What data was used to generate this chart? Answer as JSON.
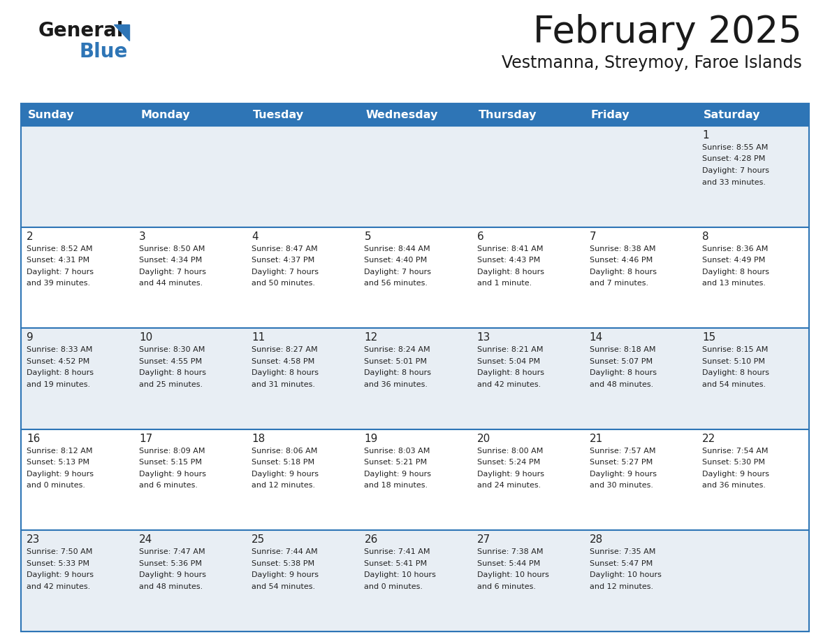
{
  "title": "February 2025",
  "subtitle": "Vestmanna, Streymoy, Faroe Islands",
  "header_bg_color": "#2e75b6",
  "header_text_color": "#ffffff",
  "cell_bg_row0": "#e8eef4",
  "cell_bg_row1": "#ffffff",
  "cell_bg_row2": "#e8eef4",
  "cell_bg_row3": "#ffffff",
  "cell_bg_row4": "#e8eef4",
  "cell_border_color": "#2e75b6",
  "text_color": "#222222",
  "day_names": [
    "Sunday",
    "Monday",
    "Tuesday",
    "Wednesday",
    "Thursday",
    "Friday",
    "Saturday"
  ],
  "days": [
    {
      "day": 1,
      "col": 6,
      "row": 0,
      "sunrise": "8:55 AM",
      "sunset": "4:28 PM",
      "daylight": "7 hours",
      "daylight2": "and 33 minutes."
    },
    {
      "day": 2,
      "col": 0,
      "row": 1,
      "sunrise": "8:52 AM",
      "sunset": "4:31 PM",
      "daylight": "7 hours",
      "daylight2": "and 39 minutes."
    },
    {
      "day": 3,
      "col": 1,
      "row": 1,
      "sunrise": "8:50 AM",
      "sunset": "4:34 PM",
      "daylight": "7 hours",
      "daylight2": "and 44 minutes."
    },
    {
      "day": 4,
      "col": 2,
      "row": 1,
      "sunrise": "8:47 AM",
      "sunset": "4:37 PM",
      "daylight": "7 hours",
      "daylight2": "and 50 minutes."
    },
    {
      "day": 5,
      "col": 3,
      "row": 1,
      "sunrise": "8:44 AM",
      "sunset": "4:40 PM",
      "daylight": "7 hours",
      "daylight2": "and 56 minutes."
    },
    {
      "day": 6,
      "col": 4,
      "row": 1,
      "sunrise": "8:41 AM",
      "sunset": "4:43 PM",
      "daylight": "8 hours",
      "daylight2": "and 1 minute."
    },
    {
      "day": 7,
      "col": 5,
      "row": 1,
      "sunrise": "8:38 AM",
      "sunset": "4:46 PM",
      "daylight": "8 hours",
      "daylight2": "and 7 minutes."
    },
    {
      "day": 8,
      "col": 6,
      "row": 1,
      "sunrise": "8:36 AM",
      "sunset": "4:49 PM",
      "daylight": "8 hours",
      "daylight2": "and 13 minutes."
    },
    {
      "day": 9,
      "col": 0,
      "row": 2,
      "sunrise": "8:33 AM",
      "sunset": "4:52 PM",
      "daylight": "8 hours",
      "daylight2": "and 19 minutes."
    },
    {
      "day": 10,
      "col": 1,
      "row": 2,
      "sunrise": "8:30 AM",
      "sunset": "4:55 PM",
      "daylight": "8 hours",
      "daylight2": "and 25 minutes."
    },
    {
      "day": 11,
      "col": 2,
      "row": 2,
      "sunrise": "8:27 AM",
      "sunset": "4:58 PM",
      "daylight": "8 hours",
      "daylight2": "and 31 minutes."
    },
    {
      "day": 12,
      "col": 3,
      "row": 2,
      "sunrise": "8:24 AM",
      "sunset": "5:01 PM",
      "daylight": "8 hours",
      "daylight2": "and 36 minutes."
    },
    {
      "day": 13,
      "col": 4,
      "row": 2,
      "sunrise": "8:21 AM",
      "sunset": "5:04 PM",
      "daylight": "8 hours",
      "daylight2": "and 42 minutes."
    },
    {
      "day": 14,
      "col": 5,
      "row": 2,
      "sunrise": "8:18 AM",
      "sunset": "5:07 PM",
      "daylight": "8 hours",
      "daylight2": "and 48 minutes."
    },
    {
      "day": 15,
      "col": 6,
      "row": 2,
      "sunrise": "8:15 AM",
      "sunset": "5:10 PM",
      "daylight": "8 hours",
      "daylight2": "and 54 minutes."
    },
    {
      "day": 16,
      "col": 0,
      "row": 3,
      "sunrise": "8:12 AM",
      "sunset": "5:13 PM",
      "daylight": "9 hours",
      "daylight2": "and 0 minutes."
    },
    {
      "day": 17,
      "col": 1,
      "row": 3,
      "sunrise": "8:09 AM",
      "sunset": "5:15 PM",
      "daylight": "9 hours",
      "daylight2": "and 6 minutes."
    },
    {
      "day": 18,
      "col": 2,
      "row": 3,
      "sunrise": "8:06 AM",
      "sunset": "5:18 PM",
      "daylight": "9 hours",
      "daylight2": "and 12 minutes."
    },
    {
      "day": 19,
      "col": 3,
      "row": 3,
      "sunrise": "8:03 AM",
      "sunset": "5:21 PM",
      "daylight": "9 hours",
      "daylight2": "and 18 minutes."
    },
    {
      "day": 20,
      "col": 4,
      "row": 3,
      "sunrise": "8:00 AM",
      "sunset": "5:24 PM",
      "daylight": "9 hours",
      "daylight2": "and 24 minutes."
    },
    {
      "day": 21,
      "col": 5,
      "row": 3,
      "sunrise": "7:57 AM",
      "sunset": "5:27 PM",
      "daylight": "9 hours",
      "daylight2": "and 30 minutes."
    },
    {
      "day": 22,
      "col": 6,
      "row": 3,
      "sunrise": "7:54 AM",
      "sunset": "5:30 PM",
      "daylight": "9 hours",
      "daylight2": "and 36 minutes."
    },
    {
      "day": 23,
      "col": 0,
      "row": 4,
      "sunrise": "7:50 AM",
      "sunset": "5:33 PM",
      "daylight": "9 hours",
      "daylight2": "and 42 minutes."
    },
    {
      "day": 24,
      "col": 1,
      "row": 4,
      "sunrise": "7:47 AM",
      "sunset": "5:36 PM",
      "daylight": "9 hours",
      "daylight2": "and 48 minutes."
    },
    {
      "day": 25,
      "col": 2,
      "row": 4,
      "sunrise": "7:44 AM",
      "sunset": "5:38 PM",
      "daylight": "9 hours",
      "daylight2": "and 54 minutes."
    },
    {
      "day": 26,
      "col": 3,
      "row": 4,
      "sunrise": "7:41 AM",
      "sunset": "5:41 PM",
      "daylight": "10 hours",
      "daylight2": "and 0 minutes."
    },
    {
      "day": 27,
      "col": 4,
      "row": 4,
      "sunrise": "7:38 AM",
      "sunset": "5:44 PM",
      "daylight": "10 hours",
      "daylight2": "and 6 minutes."
    },
    {
      "day": 28,
      "col": 5,
      "row": 4,
      "sunrise": "7:35 AM",
      "sunset": "5:47 PM",
      "daylight": "10 hours",
      "daylight2": "and 12 minutes."
    }
  ]
}
